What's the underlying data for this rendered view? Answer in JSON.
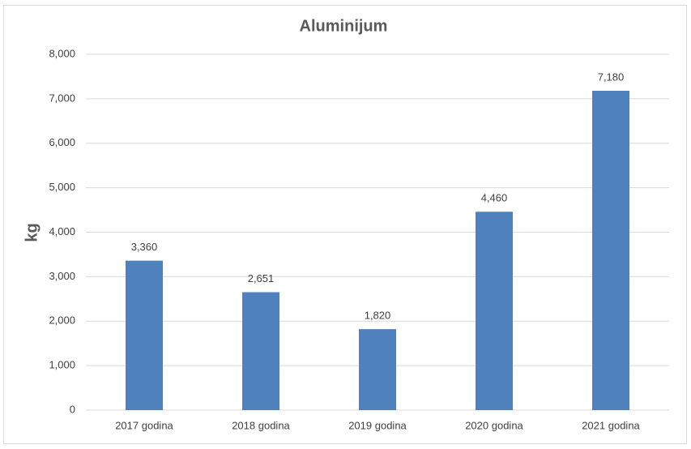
{
  "chart_data": {
    "type": "bar",
    "title": "Aluminijum",
    "y_label": "kg",
    "categories": [
      "2017 godina",
      "2018 godina",
      "2019 godina",
      "2020 godina",
      "2021 godina"
    ],
    "values": [
      3360,
      2651,
      1820,
      4460,
      7180
    ],
    "value_labels": [
      "3,360",
      "2,651",
      "1,820",
      "4,460",
      "7,180"
    ],
    "color": "#4f81bd",
    "ylim": [
      0,
      8000
    ],
    "yticks": [
      0,
      {
        "value": 1000,
        "label": "1,000"
      },
      {
        "value": 2000,
        "label": "2,000"
      },
      {
        "value": 3000,
        "label": "3,000"
      },
      {
        "value": 4000,
        "label": "4,000"
      },
      {
        "value": 5000,
        "label": "5,000"
      },
      {
        "value": 6000,
        "label": "6,000"
      },
      {
        "value": 7000,
        "label": "7,000"
      },
      {
        "value": 8000,
        "label": "8,000"
      }
    ],
    "grid": true
  }
}
